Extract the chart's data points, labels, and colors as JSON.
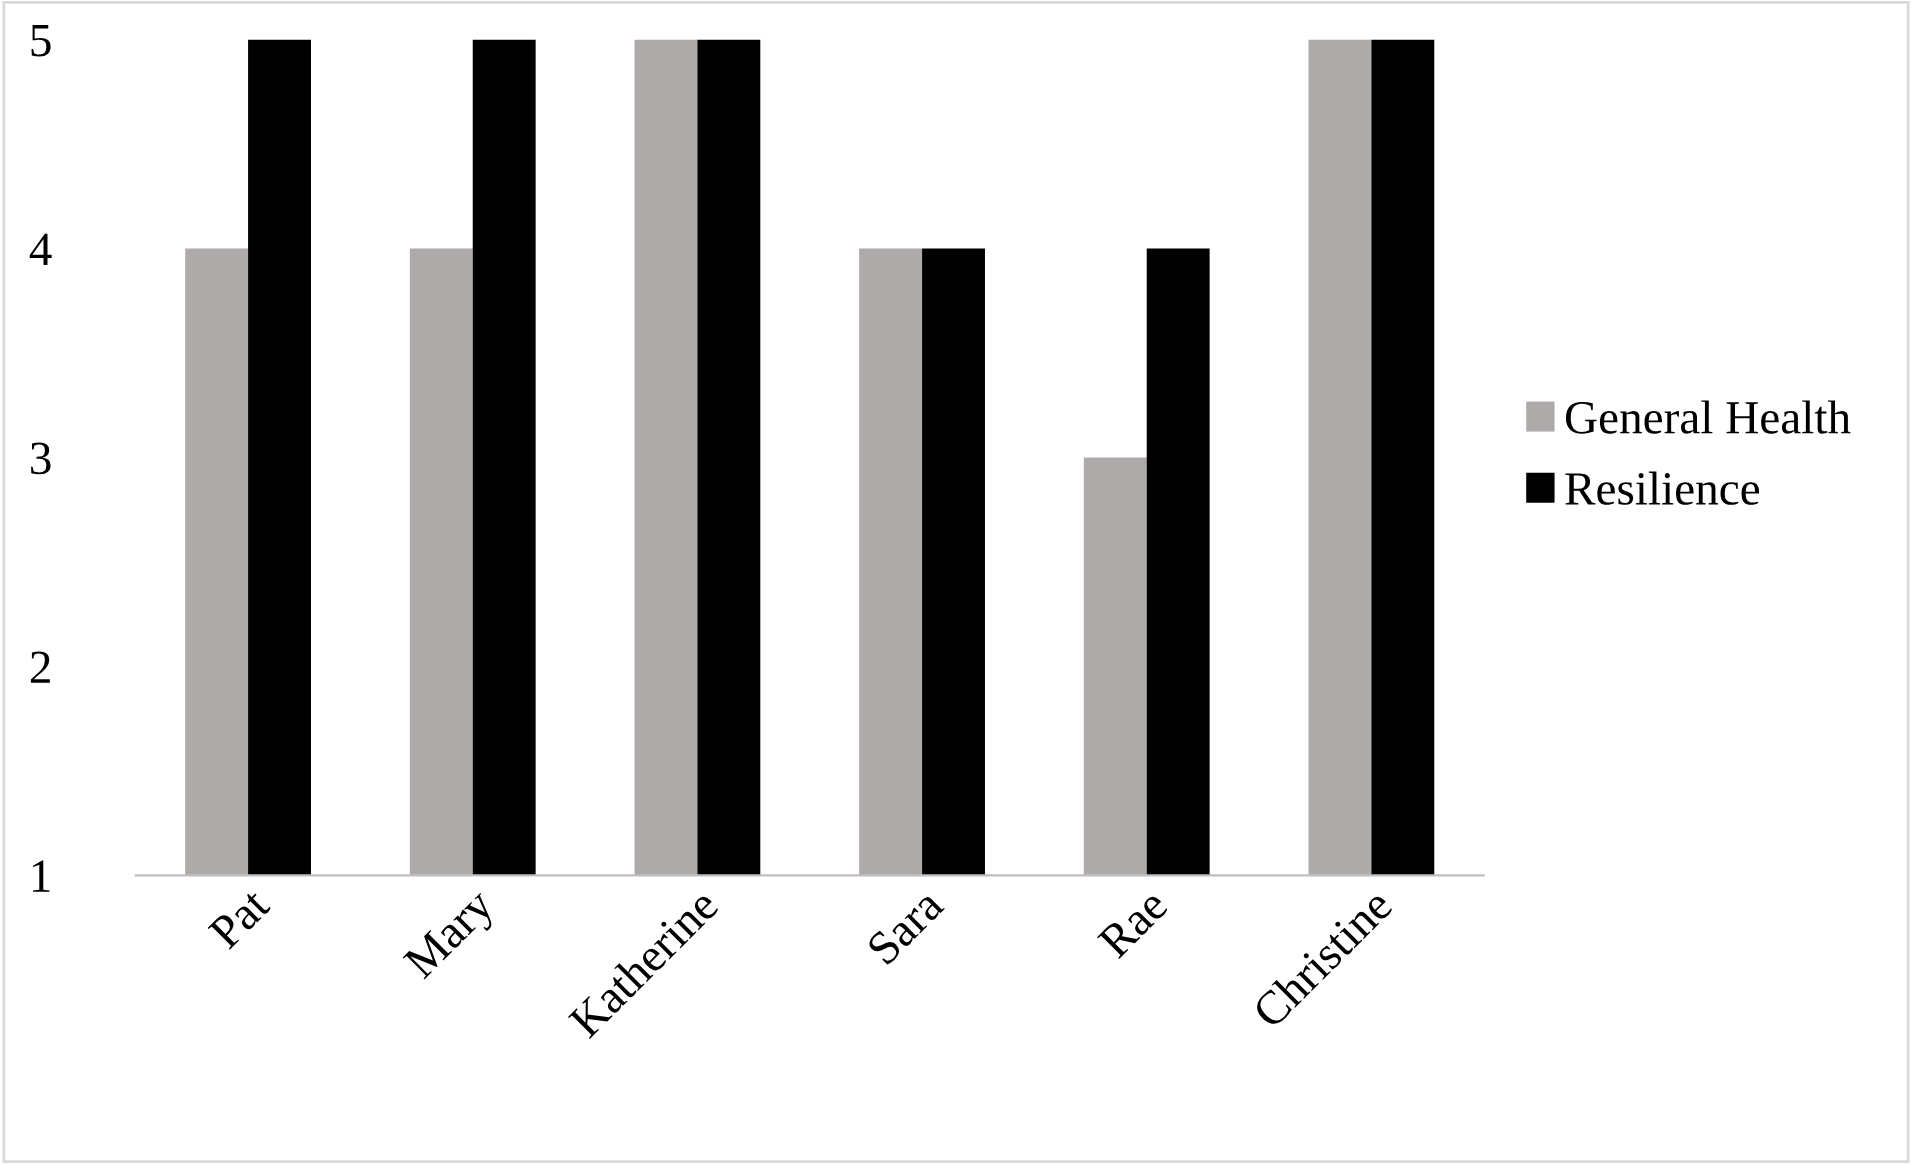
{
  "chart_data": {
    "type": "bar",
    "categories": [
      "Pat",
      "Mary",
      "Katherine",
      "Sara",
      "Rae",
      "Christine"
    ],
    "series": [
      {
        "name": "General Health",
        "color": "#aeaaaa",
        "values": [
          4,
          4,
          5,
          4,
          3,
          5
        ]
      },
      {
        "name": "Resilience",
        "color": "#000000",
        "values": [
          5,
          5,
          5,
          4,
          4,
          5
        ]
      }
    ],
    "ylim": [
      1,
      5
    ],
    "yticks": [
      1,
      2,
      3,
      4,
      5
    ],
    "grid": false,
    "legend": "right"
  }
}
